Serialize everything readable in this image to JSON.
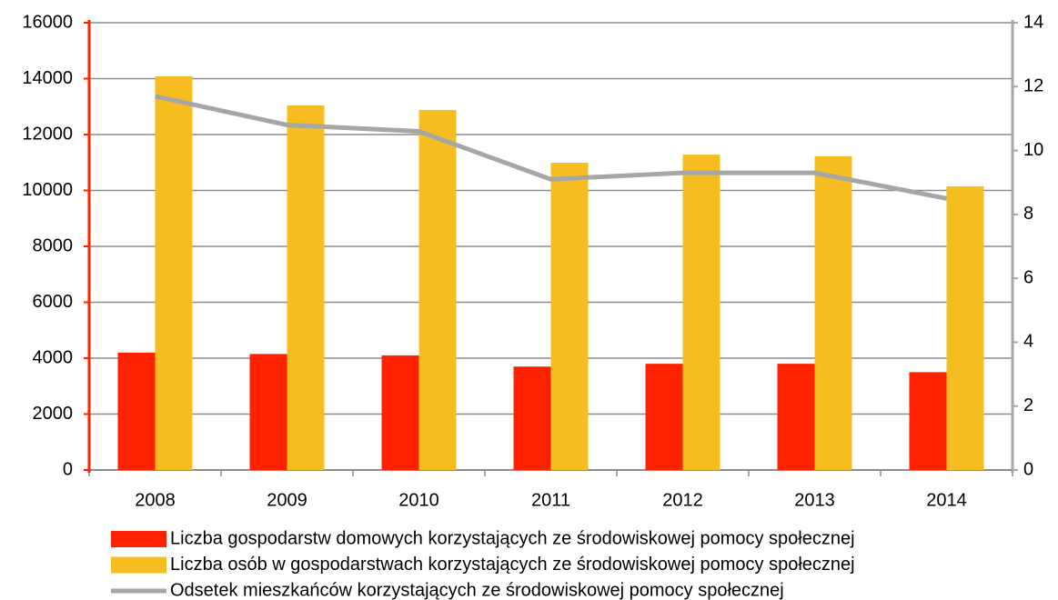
{
  "chart_data": {
    "type": "bar",
    "categories": [
      "2008",
      "2009",
      "2010",
      "2011",
      "2012",
      "2013",
      "2014"
    ],
    "series": [
      {
        "name": "Liczba gospodarstw domowych korzystających ze środowiskowej pomocy społecznej",
        "color": "#ff2200",
        "type": "bar",
        "values": [
          4200,
          4150,
          4100,
          3700,
          3800,
          3800,
          3500
        ]
      },
      {
        "name": "Liczba osób w gospodarstwach korzystających ze środowiskowej pomocy społecznej",
        "color": "#f5bd1f",
        "type": "bar",
        "values": [
          14080,
          13040,
          12880,
          10990,
          11280,
          11220,
          10150
        ]
      },
      {
        "name": "Odsetek mieszkańców korzystających ze środowiskowej pomocy społecznej",
        "color": "#a6a6a6",
        "type": "line",
        "axis": "y2",
        "values": [
          11.7,
          10.8,
          10.6,
          9.1,
          9.3,
          9.3,
          8.5
        ]
      }
    ],
    "ylim": [
      0,
      16000
    ],
    "yticks": [
      0,
      2000,
      4000,
      6000,
      8000,
      10000,
      12000,
      14000,
      16000
    ],
    "y2lim": [
      0,
      14
    ],
    "y2ticks": [
      0,
      2,
      4,
      6,
      8,
      10,
      12,
      14
    ],
    "grid": true,
    "legend": "bottom"
  }
}
